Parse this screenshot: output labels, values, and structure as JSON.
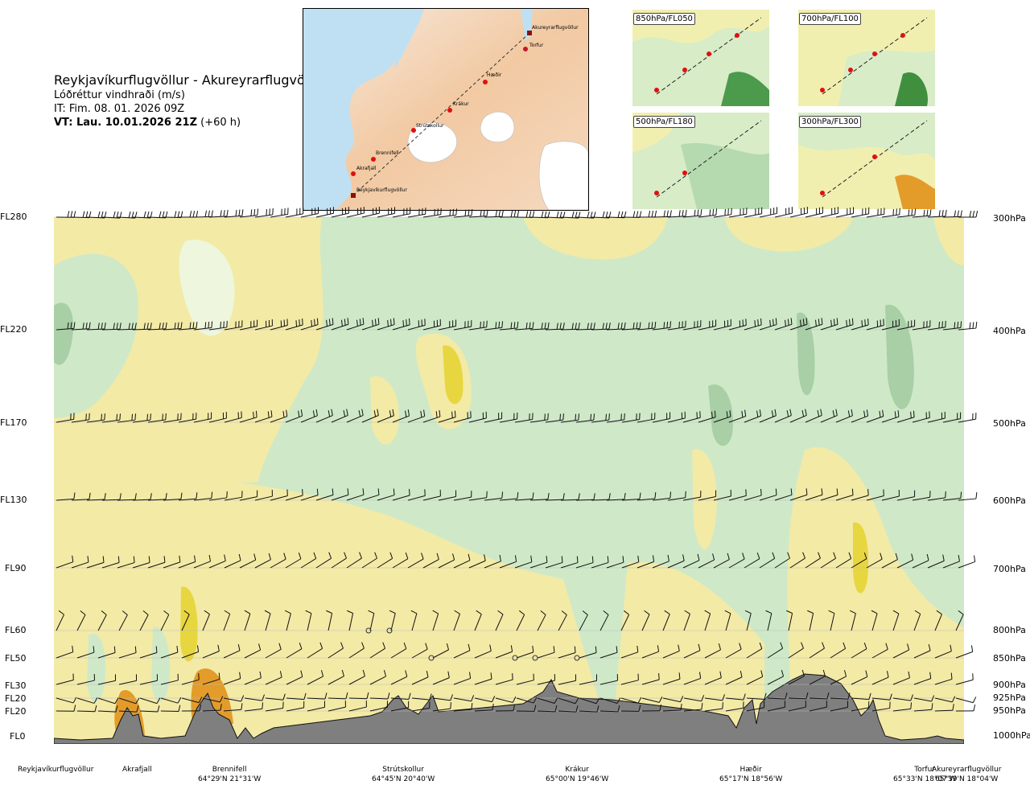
{
  "header": {
    "route": "Reykjavíkurflugvöllur - Akureyrarflugvöllur",
    "parameter": "Lóðréttur vindhraði (m/s)",
    "issue_time": "IT: Fim. 08. 01. 2026 09Z",
    "valid_label": "VT: Lau. 10.01.2026 21Z",
    "valid_offset": "(+60 h)"
  },
  "map": {
    "waypoints": [
      "Akureyrarflugvöllur",
      "Torfur",
      "Hæðir",
      "Krákur",
      "Strútskollur",
      "Brennifell",
      "Akrafjall",
      "Reykjavíkurflugvöllur"
    ]
  },
  "thumbnails": [
    "850hPa/FL050",
    "700hPa/FL100",
    "500hPa/FL180",
    "300hPa/FL300"
  ],
  "levels": [
    {
      "fl": "FL280",
      "hpa": "300hPa"
    },
    {
      "fl": "FL220",
      "hpa": "400hPa"
    },
    {
      "fl": "FL170",
      "hpa": "500hPa"
    },
    {
      "fl": "FL130",
      "hpa": "600hPa"
    },
    {
      "fl": "FL90",
      "hpa": "700hPa"
    },
    {
      "fl": "FL60",
      "hpa": "800hPa"
    },
    {
      "fl": "FL50",
      "hpa": "850hPa"
    },
    {
      "fl": "FL30",
      "hpa": "900hPa"
    },
    {
      "fl": "FL20",
      "hpa": "925hPa"
    },
    {
      "fl": "FL20",
      "hpa": "950hPa"
    },
    {
      "fl": "FL0",
      "hpa": "1000hPa"
    }
  ],
  "locations": [
    {
      "name": "Reykjavíkurflugvöllur",
      "coord": ""
    },
    {
      "name": "Akrafjall",
      "coord": ""
    },
    {
      "name": "Brennifell",
      "coord": "64°29'N 21°31'W"
    },
    {
      "name": "Strútskollur",
      "coord": "64°45'N 20°40'W"
    },
    {
      "name": "Krákur",
      "coord": "65°00'N 19°46'W"
    },
    {
      "name": "Hæðir",
      "coord": "65°17'N 18°56'W"
    },
    {
      "name": "Torfur",
      "coord": "65°33'N 18°07'W"
    },
    {
      "name": "Akureyrarflugvöllur",
      "coord": "65°39'N 18°04'W"
    }
  ],
  "chart_data": {
    "type": "heatmap",
    "title": "Reykjavíkurflugvöllur - Akureyrarflugvöllur",
    "variable": "Lóðréttur vindhraði (m/s)",
    "x_axis": "route cross-section (waypoints)",
    "y_axis_left": [
      "FL0",
      "FL20",
      "FL20",
      "FL30",
      "FL50",
      "FL60",
      "FL90",
      "FL130",
      "FL170",
      "FL220",
      "FL280"
    ],
    "y_axis_right": [
      "1000hPa",
      "950hPa",
      "925hPa",
      "900hPa",
      "850hPa",
      "800hPa",
      "700hPa",
      "600hPa",
      "500hPa",
      "400hPa",
      "300hPa"
    ],
    "colors": {
      "downward_strong": "#a8cfa5",
      "downward": "#cfe9c8",
      "near_zero": "#eef6dd",
      "upward": "#f3eaa6",
      "upward_strong": "#e8d640",
      "upward_max": "#e39b2a",
      "terrain": "#808080"
    }
  }
}
